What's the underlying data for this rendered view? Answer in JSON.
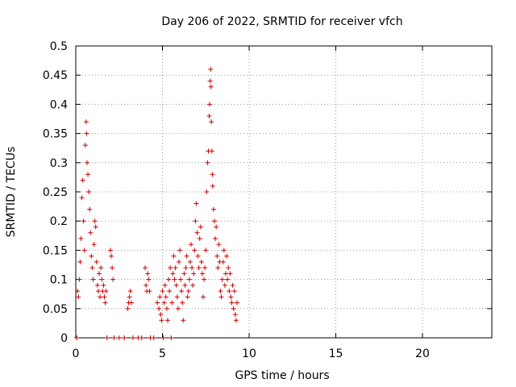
{
  "chart_data": {
    "type": "scatter",
    "title": "Day 206 of 2022, SRMTID for receiver vfch",
    "xlabel": "GPS time / hours",
    "ylabel": "SRMTID / TECUs",
    "xlim": [
      0,
      24
    ],
    "ylim": [
      0,
      0.5
    ],
    "xticks": [
      0,
      5,
      10,
      15,
      20
    ],
    "yticks": [
      0,
      0.05,
      0.1,
      0.15,
      0.2,
      0.25,
      0.3,
      0.35,
      0.4,
      0.45,
      0.5
    ],
    "xtick_labels": [
      "0",
      "5",
      "10",
      "15",
      "20"
    ],
    "ytick_labels": [
      "0",
      "0.05",
      "0.1",
      "0.15",
      "0.2",
      "0.25",
      "0.3",
      "0.35",
      "0.4",
      "0.45",
      "0.5"
    ],
    "grid": true,
    "marker": "+",
    "color": "#cc0000",
    "series": [
      {
        "name": "SRMTID",
        "points": [
          [
            0.05,
            0.0
          ],
          [
            0.1,
            0.08
          ],
          [
            0.15,
            0.07
          ],
          [
            0.2,
            0.1
          ],
          [
            0.25,
            0.13
          ],
          [
            0.3,
            0.17
          ],
          [
            0.35,
            0.24
          ],
          [
            0.4,
            0.27
          ],
          [
            0.45,
            0.2
          ],
          [
            0.5,
            0.15
          ],
          [
            0.55,
            0.33
          ],
          [
            0.6,
            0.37
          ],
          [
            0.62,
            0.35
          ],
          [
            0.65,
            0.3
          ],
          [
            0.7,
            0.28
          ],
          [
            0.75,
            0.25
          ],
          [
            0.8,
            0.22
          ],
          [
            0.85,
            0.18
          ],
          [
            0.9,
            0.14
          ],
          [
            0.95,
            0.12
          ],
          [
            1.0,
            0.1
          ],
          [
            1.05,
            0.16
          ],
          [
            1.1,
            0.2
          ],
          [
            1.15,
            0.19
          ],
          [
            1.2,
            0.13
          ],
          [
            1.25,
            0.09
          ],
          [
            1.3,
            0.08
          ],
          [
            1.35,
            0.11
          ],
          [
            1.4,
            0.07
          ],
          [
            1.45,
            0.12
          ],
          [
            1.5,
            0.1
          ],
          [
            1.55,
            0.08
          ],
          [
            1.6,
            0.09
          ],
          [
            1.65,
            0.07
          ],
          [
            1.7,
            0.06
          ],
          [
            1.75,
            0.08
          ],
          [
            1.8,
            0.0
          ],
          [
            2.0,
            0.15
          ],
          [
            2.05,
            0.14
          ],
          [
            2.1,
            0.12
          ],
          [
            2.15,
            0.1
          ],
          [
            2.2,
            0.0
          ],
          [
            2.5,
            0.0
          ],
          [
            2.8,
            0.0
          ],
          [
            3.0,
            0.05
          ],
          [
            3.05,
            0.06
          ],
          [
            3.1,
            0.07
          ],
          [
            3.15,
            0.08
          ],
          [
            3.2,
            0.06
          ],
          [
            3.3,
            0.0
          ],
          [
            3.6,
            0.0
          ],
          [
            3.8,
            0.0
          ],
          [
            4.0,
            0.12
          ],
          [
            4.05,
            0.09
          ],
          [
            4.1,
            0.08
          ],
          [
            4.15,
            0.11
          ],
          [
            4.2,
            0.1
          ],
          [
            4.25,
            0.08
          ],
          [
            4.3,
            0.0
          ],
          [
            4.5,
            0.0
          ],
          [
            4.7,
            0.06
          ],
          [
            4.8,
            0.05
          ],
          [
            4.85,
            0.07
          ],
          [
            4.9,
            0.04
          ],
          [
            4.95,
            0.03
          ],
          [
            5.0,
            0.08
          ],
          [
            5.05,
            0.0
          ],
          [
            5.1,
            0.06
          ],
          [
            5.15,
            0.09
          ],
          [
            5.2,
            0.07
          ],
          [
            5.25,
            0.05
          ],
          [
            5.3,
            0.03
          ],
          [
            5.35,
            0.1
          ],
          [
            5.4,
            0.08
          ],
          [
            5.45,
            0.12
          ],
          [
            5.5,
            0.0
          ],
          [
            5.55,
            0.06
          ],
          [
            5.6,
            0.11
          ],
          [
            5.65,
            0.14
          ],
          [
            5.7,
            0.1
          ],
          [
            5.75,
            0.12
          ],
          [
            5.8,
            0.09
          ],
          [
            5.85,
            0.07
          ],
          [
            5.9,
            0.05
          ],
          [
            5.95,
            0.13
          ],
          [
            6.0,
            0.15
          ],
          [
            6.05,
            0.1
          ],
          [
            6.1,
            0.08
          ],
          [
            6.15,
            0.06
          ],
          [
            6.2,
            0.03
          ],
          [
            6.25,
            0.11
          ],
          [
            6.3,
            0.09
          ],
          [
            6.35,
            0.12
          ],
          [
            6.4,
            0.14
          ],
          [
            6.45,
            0.07
          ],
          [
            6.5,
            0.08
          ],
          [
            6.55,
            0.1
          ],
          [
            6.6,
            0.13
          ],
          [
            6.65,
            0.16
          ],
          [
            6.7,
            0.12
          ],
          [
            6.75,
            0.09
          ],
          [
            6.8,
            0.11
          ],
          [
            6.85,
            0.15
          ],
          [
            6.9,
            0.2
          ],
          [
            6.95,
            0.23
          ],
          [
            7.0,
            0.18
          ],
          [
            7.05,
            0.14
          ],
          [
            7.1,
            0.12
          ],
          [
            7.15,
            0.17
          ],
          [
            7.2,
            0.19
          ],
          [
            7.25,
            0.13
          ],
          [
            7.3,
            0.11
          ],
          [
            7.35,
            0.07
          ],
          [
            7.4,
            0.1
          ],
          [
            7.45,
            0.12
          ],
          [
            7.5,
            0.15
          ],
          [
            7.55,
            0.25
          ],
          [
            7.6,
            0.3
          ],
          [
            7.65,
            0.32
          ],
          [
            7.7,
            0.38
          ],
          [
            7.72,
            0.4
          ],
          [
            7.75,
            0.44
          ],
          [
            7.78,
            0.46
          ],
          [
            7.8,
            0.43
          ],
          [
            7.82,
            0.37
          ],
          [
            7.85,
            0.32
          ],
          [
            7.88,
            0.28
          ],
          [
            7.9,
            0.26
          ],
          [
            7.95,
            0.22
          ],
          [
            8.0,
            0.2
          ],
          [
            8.05,
            0.17
          ],
          [
            8.1,
            0.19
          ],
          [
            8.15,
            0.14
          ],
          [
            8.2,
            0.12
          ],
          [
            8.25,
            0.16
          ],
          [
            8.3,
            0.13
          ],
          [
            8.35,
            0.08
          ],
          [
            8.4,
            0.07
          ],
          [
            8.45,
            0.1
          ],
          [
            8.5,
            0.13
          ],
          [
            8.55,
            0.15
          ],
          [
            8.6,
            0.09
          ],
          [
            8.65,
            0.11
          ],
          [
            8.7,
            0.14
          ],
          [
            8.75,
            0.1
          ],
          [
            8.8,
            0.12
          ],
          [
            8.85,
            0.08
          ],
          [
            8.9,
            0.11
          ],
          [
            8.95,
            0.07
          ],
          [
            9.0,
            0.06
          ],
          [
            9.05,
            0.09
          ],
          [
            9.1,
            0.05
          ],
          [
            9.15,
            0.08
          ],
          [
            9.2,
            0.04
          ],
          [
            9.25,
            0.03
          ],
          [
            9.3,
            0.06
          ]
        ]
      }
    ]
  }
}
